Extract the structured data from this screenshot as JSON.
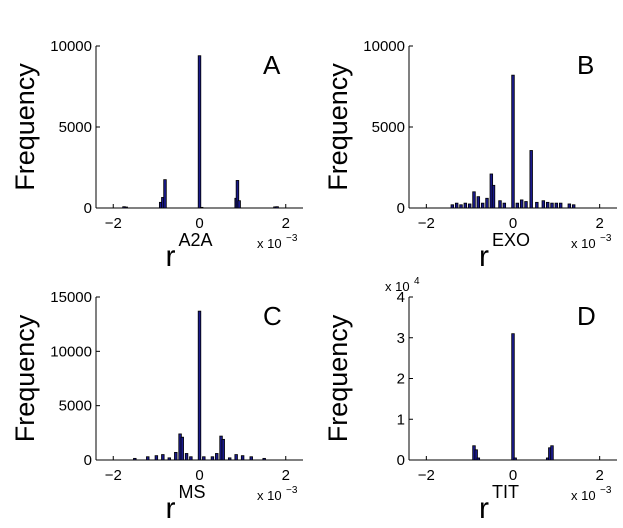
{
  "figure": {
    "bar_color": "#1a1a8c",
    "edge_color": "#000000"
  },
  "chart_data": [
    {
      "type": "bar",
      "panel": "A",
      "ylabel": "Frequency",
      "xlabel_base": "r",
      "xlabel_sup": "A2A",
      "x_multiplier": "x 10",
      "x_multiplier_exp": "−3",
      "y_multiplier": "",
      "y_multiplier_exp": "",
      "xlim": [
        -2.4,
        2.4
      ],
      "ylim": [
        0,
        10000
      ],
      "xticks": [
        -2,
        0,
        2
      ],
      "xtick_labels": [
        "−2",
        "0",
        "2"
      ],
      "yticks": [
        0,
        5000,
        10000
      ],
      "ytick_labels": [
        "0",
        "5000",
        "10000"
      ],
      "x": [
        -1.75,
        -1.7,
        -0.9,
        -0.85,
        -0.8,
        0,
        0.05,
        0.85,
        0.88,
        0.92,
        1.75,
        1.8
      ],
      "values": [
        80,
        60,
        350,
        650,
        1750,
        9400,
        40,
        600,
        1700,
        450,
        70,
        80
      ]
    },
    {
      "type": "bar",
      "panel": "B",
      "ylabel": "Frequency",
      "xlabel_base": "r",
      "xlabel_sup": "EXO",
      "x_multiplier": "x 10",
      "x_multiplier_exp": "−3",
      "y_multiplier": "",
      "y_multiplier_exp": "",
      "xlim": [
        -2.4,
        2.4
      ],
      "ylim": [
        0,
        10000
      ],
      "xticks": [
        -2,
        0,
        2
      ],
      "xtick_labels": [
        "−2",
        "0",
        "2"
      ],
      "yticks": [
        0,
        5000,
        10000
      ],
      "ytick_labels": [
        "0",
        "5000",
        "10000"
      ],
      "x": [
        -1.4,
        -1.3,
        -1.2,
        -1.1,
        -1.0,
        -0.9,
        -0.8,
        -0.7,
        -0.6,
        -0.5,
        -0.45,
        -0.3,
        -0.2,
        0,
        0.1,
        0.2,
        0.3,
        0.42,
        0.55,
        0.7,
        0.8,
        0.9,
        1.0,
        1.1,
        1.3,
        1.4
      ],
      "values": [
        200,
        300,
        200,
        300,
        250,
        1000,
        700,
        300,
        600,
        2100,
        1400,
        450,
        300,
        8200,
        300,
        500,
        400,
        3550,
        350,
        450,
        350,
        300,
        300,
        300,
        250,
        200
      ]
    },
    {
      "type": "bar",
      "panel": "C",
      "ylabel": "Frequency",
      "xlabel_base": "r",
      "xlabel_sup": "MS",
      "x_multiplier": "x 10",
      "x_multiplier_exp": "−3",
      "y_multiplier": "",
      "y_multiplier_exp": "",
      "xlim": [
        -2.4,
        2.4
      ],
      "ylim": [
        0,
        15000
      ],
      "xticks": [
        -2,
        0,
        2
      ],
      "xtick_labels": [
        "−2",
        "0",
        "2"
      ],
      "yticks": [
        0,
        5000,
        10000,
        15000
      ],
      "ytick_labels": [
        "0",
        "5000",
        "10000",
        "15000"
      ],
      "x": [
        -1.5,
        -1.2,
        -1.0,
        -0.85,
        -0.7,
        -0.55,
        -0.45,
        -0.4,
        -0.3,
        -0.2,
        0,
        0.1,
        0.3,
        0.4,
        0.5,
        0.55,
        0.7,
        0.85,
        1.0,
        1.2,
        1.5
      ],
      "values": [
        150,
        300,
        400,
        500,
        200,
        700,
        2400,
        2100,
        600,
        300,
        13700,
        300,
        300,
        600,
        2200,
        1900,
        200,
        500,
        400,
        300,
        150
      ]
    },
    {
      "type": "bar",
      "panel": "D",
      "ylabel": "Frequency",
      "xlabel_base": "r",
      "xlabel_sup": "TIT",
      "x_multiplier": "x 10",
      "x_multiplier_exp": "−3",
      "y_multiplier": "x 10",
      "y_multiplier_exp": "4",
      "xlim": [
        -2.4,
        2.4
      ],
      "ylim": [
        0,
        4
      ],
      "xticks": [
        -2,
        0,
        2
      ],
      "xtick_labels": [
        "−2",
        "0",
        "2"
      ],
      "yticks": [
        0,
        1,
        2,
        3,
        4
      ],
      "ytick_labels": [
        "0",
        "1",
        "2",
        "3",
        "4"
      ],
      "x": [
        -0.9,
        -0.85,
        -0.8,
        0,
        0.05,
        0.8,
        0.85,
        0.9
      ],
      "values": [
        0.35,
        0.25,
        0.05,
        3.1,
        0.05,
        0.05,
        0.3,
        0.35
      ]
    }
  ]
}
